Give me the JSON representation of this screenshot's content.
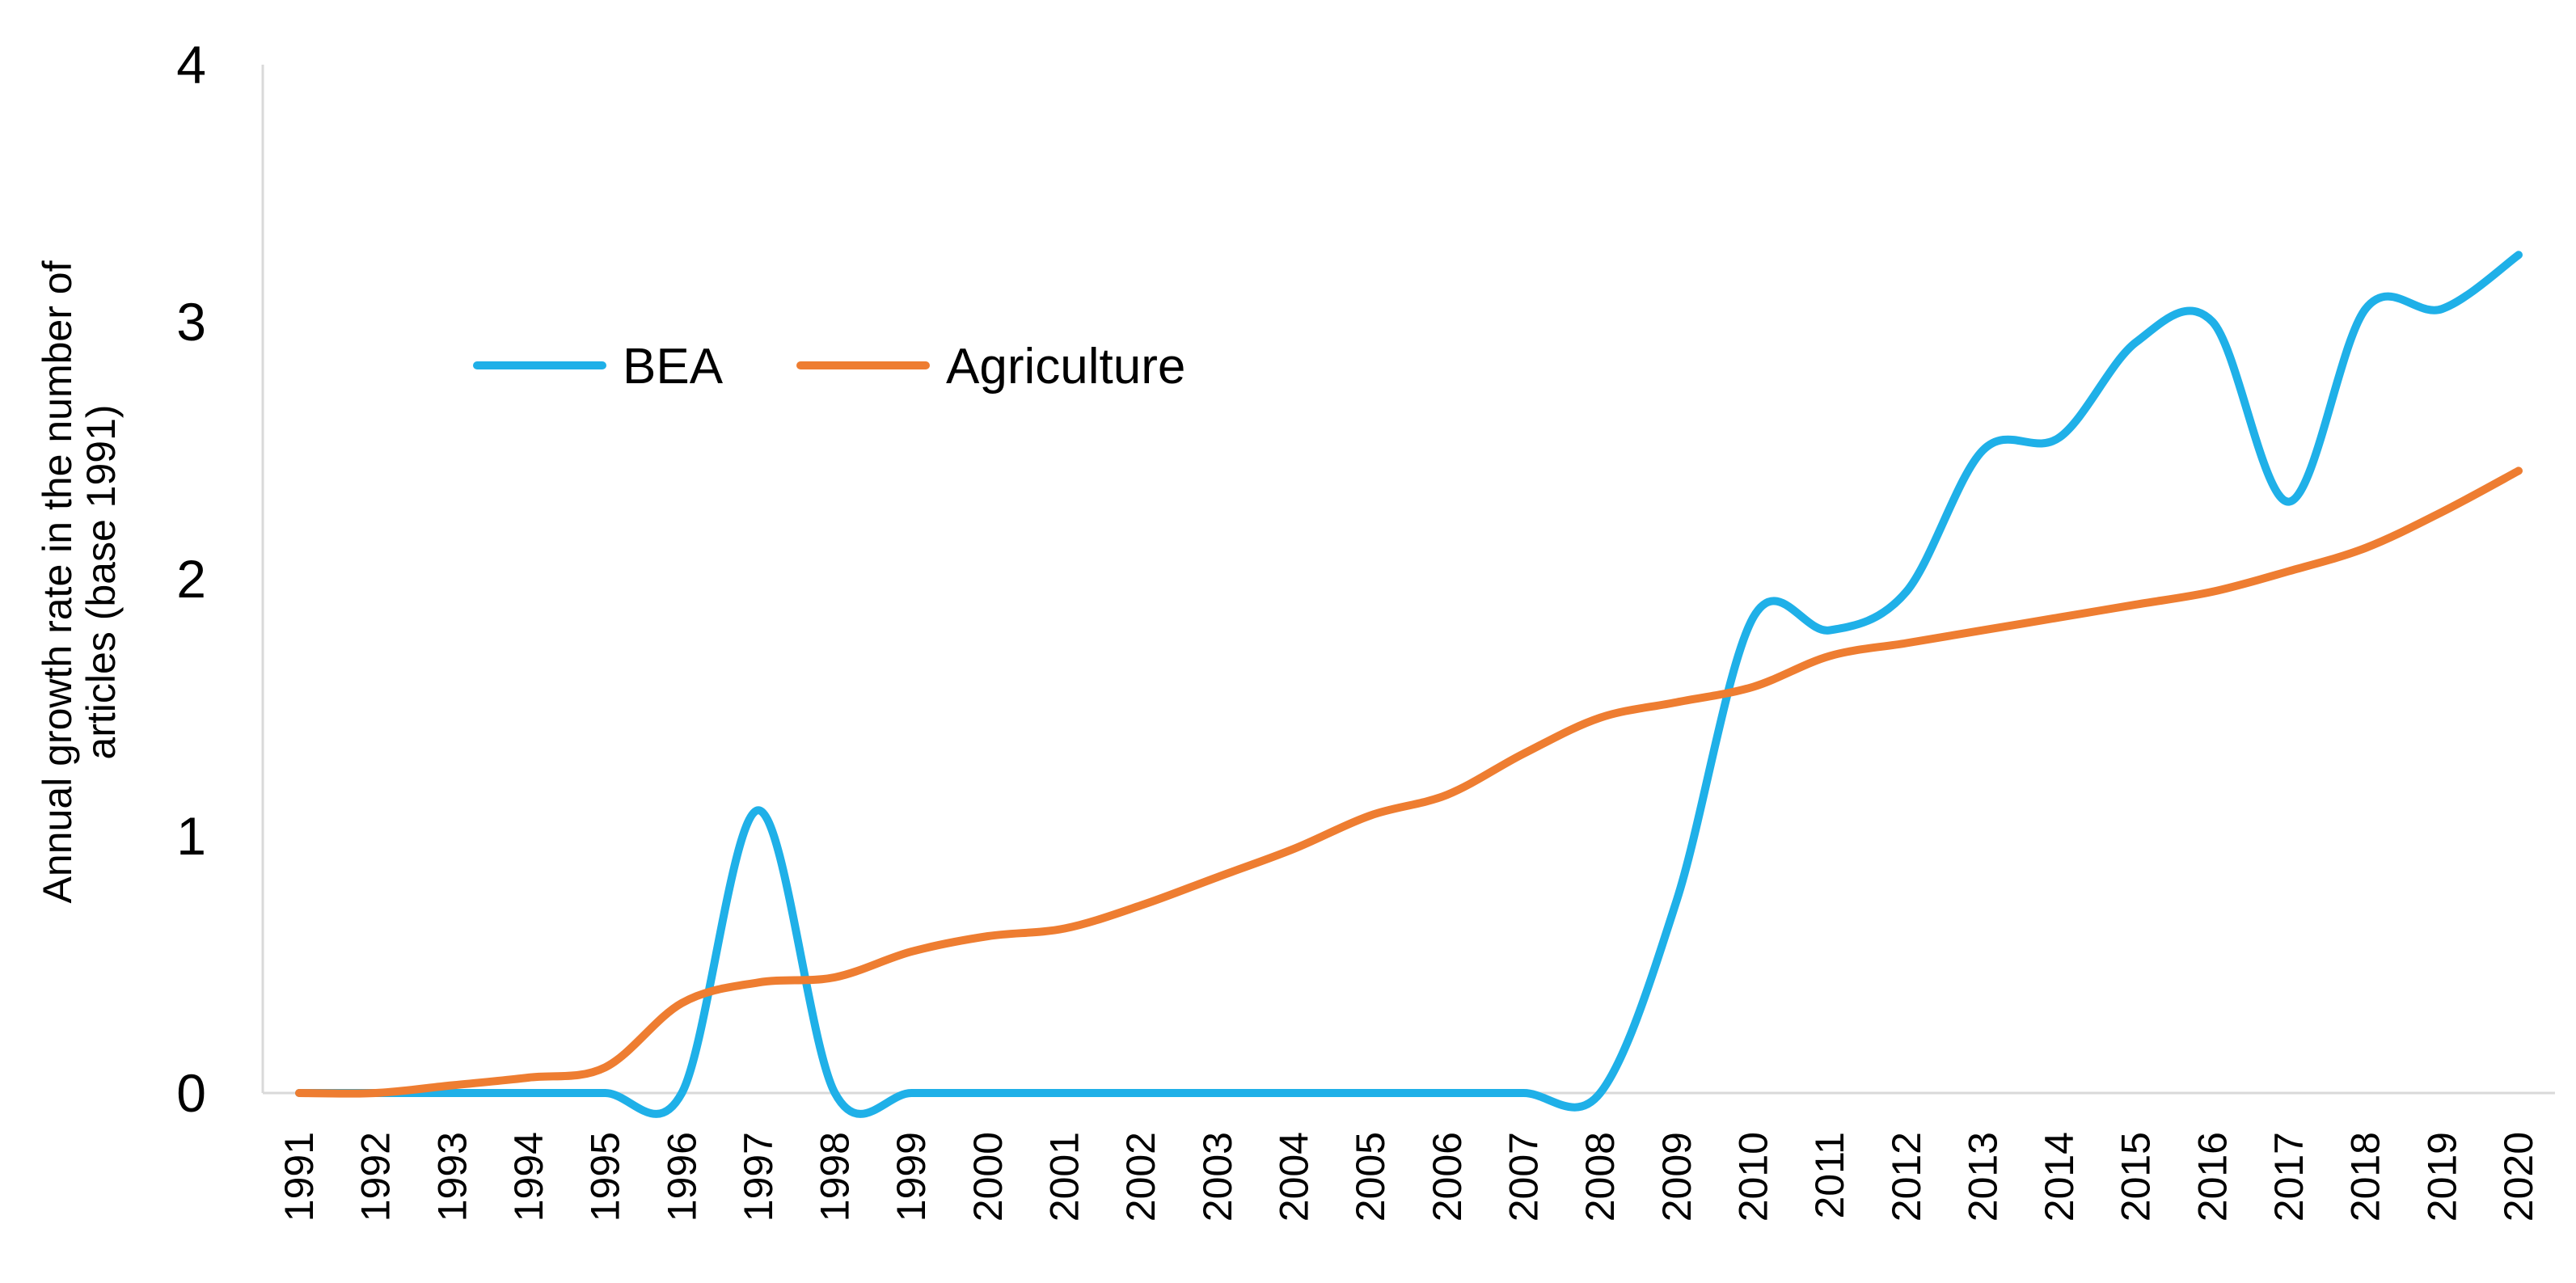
{
  "chart_data": {
    "type": "line",
    "title": "",
    "xlabel": "",
    "ylabel_lines": [
      "Annual growth rate in the number of",
      "articles (base 1991)"
    ],
    "categories": [
      "1991",
      "1992",
      "1993",
      "1994",
      "1995",
      "1996",
      "1997",
      "1998",
      "1999",
      "2000",
      "2001",
      "2002",
      "2003",
      "2004",
      "2005",
      "2006",
      "2007",
      "2008",
      "2009",
      "2010",
      "2011",
      "2012",
      "2013",
      "2014",
      "2015",
      "2016",
      "2017",
      "2018",
      "2019",
      "2020"
    ],
    "ylim": [
      0,
      4
    ],
    "yticks": [
      "0",
      "1",
      "2",
      "3",
      "4"
    ],
    "grid": false,
    "legend_position": "top-left",
    "series": [
      {
        "name": "BEA",
        "color": "#1fb0e8",
        "values": [
          0,
          0,
          0,
          0,
          0,
          0,
          1.1,
          0,
          0,
          0,
          0,
          0,
          0,
          0,
          0,
          0,
          0,
          0,
          0.75,
          1.85,
          1.8,
          1.95,
          2.5,
          2.55,
          2.92,
          3.0,
          2.3,
          3.05,
          3.05,
          3.26
        ]
      },
      {
        "name": "Agriculture",
        "color": "#ee7d31",
        "values": [
          0,
          0,
          0.03,
          0.06,
          0.1,
          0.35,
          0.43,
          0.45,
          0.55,
          0.61,
          0.64,
          0.73,
          0.84,
          0.95,
          1.08,
          1.16,
          1.32,
          1.46,
          1.52,
          1.58,
          1.7,
          1.75,
          1.8,
          1.85,
          1.9,
          1.95,
          2.03,
          2.12,
          2.26,
          2.42
        ]
      }
    ]
  }
}
